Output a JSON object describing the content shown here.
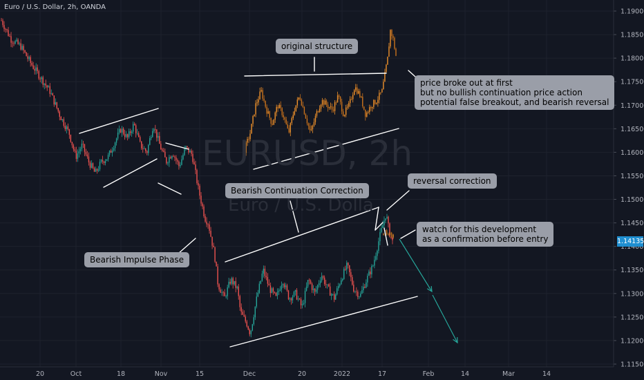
{
  "header": {
    "legend": "Euro / U.S. Dollar, 2h, OANDA"
  },
  "watermark": {
    "symbol": "EURUSD, 2h",
    "name": "Euro / U.S. Dolla"
  },
  "current_price": "1.14135",
  "callouts": {
    "original_structure": "original structure",
    "breakout_note": "price broke out at first\nbut no bullish continuation price action\npotential false breakout, and bearish reversal",
    "bearish_continuation": "Bearish Continuation Correction",
    "reversal_correction": "reversal correction",
    "watch_development": "watch for this development\nas a confirmation before entry",
    "bearish_impulse": "Bearish Impulse Phase"
  },
  "colors": {
    "background": "#131722",
    "grid": "#1e222d",
    "up_candle": "#26a69a",
    "down_candle": "#ef5350",
    "highlight_candle": "#f0922b",
    "trendline": "#ffffff",
    "projection_arrow": "#26a69a",
    "callout_bg": "#9a9ea8",
    "price_badge": "#1f8ed0"
  },
  "chart_data": {
    "type": "candlestick",
    "symbol": "EURUSD",
    "timeframe": "2h",
    "y_axis": {
      "ticks": [
        "1.19000",
        "1.18500",
        "1.18000",
        "1.17500",
        "1.17000",
        "1.16500",
        "1.16000",
        "1.15500",
        "1.15000",
        "1.14500",
        "1.14000",
        "1.13500",
        "1.13000",
        "1.12500",
        "1.12000",
        "1.11500"
      ],
      "ylim": [
        1.113,
        1.1915
      ]
    },
    "x_axis": {
      "ticks": [
        "20",
        "Oct",
        "18",
        "Nov",
        "15",
        "Dec",
        "20",
        "2022",
        "17",
        "Feb",
        "14",
        "Mar",
        "14"
      ]
    },
    "price_path": [
      {
        "t": 0,
        "p": 1.188
      },
      {
        "t": 3,
        "p": 1.184
      },
      {
        "t": 6,
        "p": 1.1825
      },
      {
        "t": 9,
        "p": 1.179
      },
      {
        "t": 12,
        "p": 1.176
      },
      {
        "t": 15,
        "p": 1.173
      },
      {
        "t": 18,
        "p": 1.168
      },
      {
        "t": 21,
        "p": 1.164
      },
      {
        "t": 23,
        "p": 1.159
      },
      {
        "t": 25,
        "p": 1.1615
      },
      {
        "t": 27,
        "p": 1.158
      },
      {
        "t": 29,
        "p": 1.1555
      },
      {
        "t": 31,
        "p": 1.158
      },
      {
        "t": 33,
        "p": 1.159
      },
      {
        "t": 35,
        "p": 1.162
      },
      {
        "t": 37,
        "p": 1.165
      },
      {
        "t": 39,
        "p": 1.163
      },
      {
        "t": 41,
        "p": 1.166
      },
      {
        "t": 43,
        "p": 1.1615
      },
      {
        "t": 45,
        "p": 1.16
      },
      {
        "t": 47,
        "p": 1.166
      },
      {
        "t": 49,
        "p": 1.1615
      },
      {
        "t": 51,
        "p": 1.158
      },
      {
        "t": 53,
        "p": 1.16
      },
      {
        "t": 55,
        "p": 1.157
      },
      {
        "t": 57,
        "p": 1.161
      },
      {
        "t": 59,
        "p": 1.1595
      },
      {
        "t": 61,
        "p": 1.152
      },
      {
        "t": 63,
        "p": 1.146
      },
      {
        "t": 64,
        "p": 1.145
      },
      {
        "t": 66,
        "p": 1.138
      },
      {
        "t": 67,
        "p": 1.132
      },
      {
        "t": 69,
        "p": 1.129
      },
      {
        "t": 71,
        "p": 1.133
      },
      {
        "t": 73,
        "p": 1.131
      },
      {
        "t": 74,
        "p": 1.126
      },
      {
        "t": 76,
        "p": 1.1235
      },
      {
        "t": 77,
        "p": 1.1215
      },
      {
        "t": 79,
        "p": 1.129
      },
      {
        "t": 81,
        "p": 1.135
      },
      {
        "t": 83,
        "p": 1.131
      },
      {
        "t": 85,
        "p": 1.129
      },
      {
        "t": 87,
        "p": 1.133
      },
      {
        "t": 89,
        "p": 1.129
      },
      {
        "t": 91,
        "p": 1.13
      },
      {
        "t": 93,
        "p": 1.127
      },
      {
        "t": 95,
        "p": 1.133
      },
      {
        "t": 97,
        "p": 1.13
      },
      {
        "t": 99,
        "p": 1.134
      },
      {
        "t": 101,
        "p": 1.131
      },
      {
        "t": 103,
        "p": 1.129
      },
      {
        "t": 105,
        "p": 1.133
      },
      {
        "t": 107,
        "p": 1.136
      },
      {
        "t": 109,
        "p": 1.131
      },
      {
        "t": 111,
        "p": 1.1295
      },
      {
        "t": 113,
        "p": 1.133
      },
      {
        "t": 115,
        "p": 1.136
      },
      {
        "t": 117,
        "p": 1.142
      },
      {
        "t": 119,
        "p": 1.147
      },
      {
        "t": 120,
        "p": 1.143
      },
      {
        "t": 121,
        "p": 1.141
      }
    ],
    "highlighted_structure": [
      {
        "t": 0,
        "p": 1.1605
      },
      {
        "t": 2,
        "p": 1.164
      },
      {
        "t": 4,
        "p": 1.17
      },
      {
        "t": 6,
        "p": 1.173
      },
      {
        "t": 8,
        "p": 1.169
      },
      {
        "t": 10,
        "p": 1.166
      },
      {
        "t": 12,
        "p": 1.17
      },
      {
        "t": 14,
        "p": 1.168
      },
      {
        "t": 16,
        "p": 1.164
      },
      {
        "t": 18,
        "p": 1.169
      },
      {
        "t": 20,
        "p": 1.172
      },
      {
        "t": 22,
        "p": 1.168
      },
      {
        "t": 24,
        "p": 1.164
      },
      {
        "t": 26,
        "p": 1.168
      },
      {
        "t": 28,
        "p": 1.171
      },
      {
        "t": 30,
        "p": 1.17
      },
      {
        "t": 32,
        "p": 1.169
      },
      {
        "t": 34,
        "p": 1.172
      },
      {
        "t": 36,
        "p": 1.168
      },
      {
        "t": 38,
        "p": 1.17
      },
      {
        "t": 40,
        "p": 1.174
      },
      {
        "t": 42,
        "p": 1.172
      },
      {
        "t": 44,
        "p": 1.168
      },
      {
        "t": 46,
        "p": 1.17
      },
      {
        "t": 48,
        "p": 1.171
      },
      {
        "t": 50,
        "p": 1.173
      },
      {
        "t": 52,
        "p": 1.18
      },
      {
        "t": 53,
        "p": 1.186
      },
      {
        "t": 54,
        "p": 1.184
      },
      {
        "t": 55,
        "p": 1.1805
      }
    ],
    "reversal_highlight": [
      {
        "t": 0,
        "p": 1.1425
      },
      {
        "t": 1,
        "p": 1.1438
      },
      {
        "t": 2,
        "p": 1.1418
      },
      {
        "t": 3,
        "p": 1.1432
      },
      {
        "t": 4,
        "p": 1.142
      },
      {
        "t": 5,
        "p": 1.1428
      }
    ],
    "trendlines": [
      {
        "name": "original-structure-top",
        "from": [
          "~Dec",
          1.1763
        ],
        "to": [
          "~Jan 17",
          1.1769
        ]
      },
      {
        "name": "original-structure-bottom",
        "from": [
          "~Dec",
          1.1592
        ],
        "to": [
          "~Jan 20",
          1.1652
        ]
      },
      {
        "name": "continuation-top",
        "from": [
          "~Nov 26",
          1.1385
        ],
        "to": [
          "~Jan 15",
          1.1483
        ]
      },
      {
        "name": "continuation-bottom",
        "from": [
          "~Nov 26",
          1.119
        ],
        "to": [
          "~Jan 26",
          1.1295
        ]
      }
    ],
    "projection": "bearish continuation toward ~1.1205"
  }
}
